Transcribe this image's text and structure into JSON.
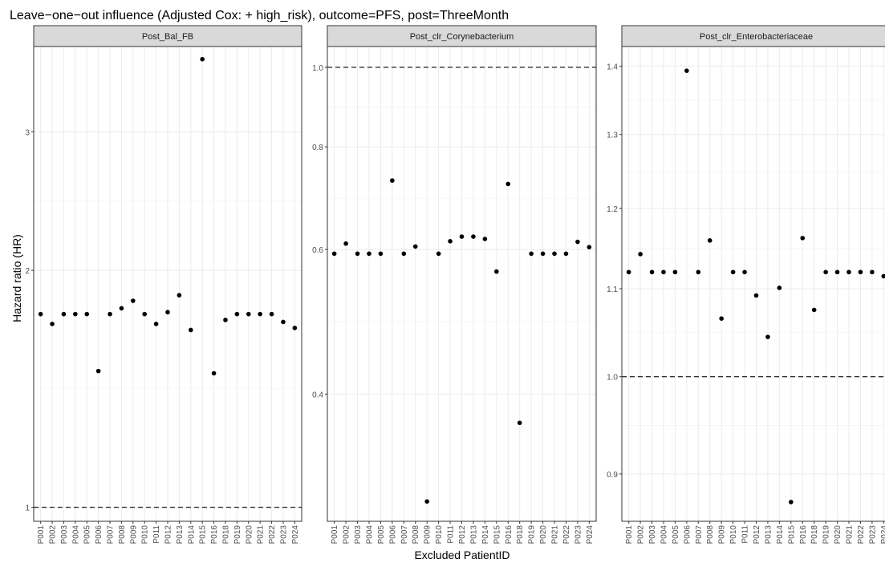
{
  "chart_data": {
    "type": "scatter",
    "title": "Leave−one−out influence (Adjusted Cox: + high_risk), outcome=PFS, post=ThreeMonth",
    "xlabel": "Excluded PatientID",
    "ylabel": "Hazard ratio (HR)",
    "categories": [
      "P001",
      "P002",
      "P003",
      "P004",
      "P005",
      "P006",
      "P007",
      "P008",
      "P009",
      "P010",
      "P011",
      "P012",
      "P013",
      "P014",
      "P015",
      "P016",
      "P018",
      "P019",
      "P020",
      "P021",
      "P022",
      "P023",
      "P024"
    ],
    "y_scale": "log",
    "grid": true,
    "reference_line": 1.0,
    "panels": [
      {
        "name": "Post_Bal_FB",
        "ylim": [
          0.96,
          3.85
        ],
        "yticks": [
          1,
          2,
          3
        ],
        "ytick_labels": [
          "1",
          "2",
          "3"
        ],
        "values": [
          1.76,
          1.71,
          1.76,
          1.76,
          1.76,
          1.49,
          1.76,
          1.79,
          1.83,
          1.76,
          1.71,
          1.77,
          1.86,
          1.68,
          3.71,
          1.48,
          1.73,
          1.76,
          1.76,
          1.76,
          1.76,
          1.72,
          1.69
        ]
      },
      {
        "name": "Post_clr_Corynebacterium",
        "ylim": [
          0.28,
          1.06
        ],
        "yticks": [
          0.4,
          0.6,
          0.8,
          1.0
        ],
        "ytick_labels": [
          "0.4",
          "0.6",
          "0.8",
          "1.0"
        ],
        "values": [
          0.593,
          0.61,
          0.593,
          0.593,
          0.593,
          0.728,
          0.593,
          0.605,
          0.296,
          0.593,
          0.614,
          0.622,
          0.622,
          0.618,
          0.564,
          0.721,
          0.369,
          0.593,
          0.593,
          0.593,
          0.593,
          0.613,
          0.604
        ]
      },
      {
        "name": "Post_clr_Enterobacteriaceae",
        "ylim": [
          0.855,
          1.43
        ],
        "yticks": [
          0.9,
          1.0,
          1.1,
          1.2,
          1.3,
          1.4
        ],
        "ytick_labels": [
          "0.9",
          "1.0",
          "1.1",
          "1.2",
          "1.3",
          "1.4"
        ],
        "values": [
          1.12,
          1.142,
          1.12,
          1.12,
          1.12,
          1.393,
          1.12,
          1.159,
          1.065,
          1.12,
          1.12,
          1.092,
          1.044,
          1.101,
          0.873,
          1.162,
          1.075,
          1.12,
          1.12,
          1.12,
          1.12,
          1.12,
          1.115
        ]
      }
    ]
  }
}
